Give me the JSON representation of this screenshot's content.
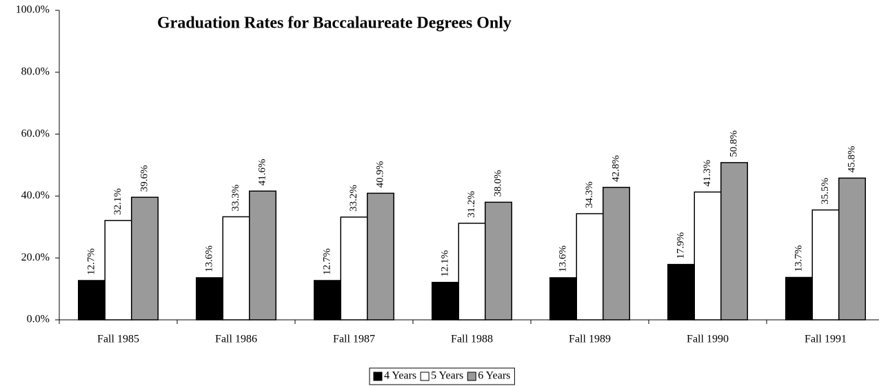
{
  "chart_data": {
    "type": "bar",
    "title": "Graduation Rates for Baccalaureate Degrees Only",
    "categories": [
      "Fall 1985",
      "Fall 1986",
      "Fall 1987",
      "Fall 1988",
      "Fall 1989",
      "Fall 1990",
      "Fall 1991"
    ],
    "series": [
      {
        "name": "4 Years",
        "color": "#000000",
        "values": [
          12.7,
          13.6,
          12.7,
          12.1,
          13.6,
          17.9,
          13.7
        ],
        "value_labels": [
          "12.7%",
          "13.6%",
          "12.7%",
          "12.1%",
          "13.6%",
          "17.9%",
          "13.7%"
        ]
      },
      {
        "name": "5 Years",
        "color": "#ffffff",
        "values": [
          32.1,
          33.3,
          33.2,
          31.2,
          34.3,
          41.3,
          35.5
        ],
        "value_labels": [
          "32.1%",
          "33.3%",
          "33.2%",
          "31.2%",
          "34.3%",
          "41.3%",
          "35.5%"
        ]
      },
      {
        "name": "6 Years",
        "color": "#9a9a9a",
        "values": [
          39.6,
          41.6,
          40.9,
          38.0,
          42.8,
          50.8,
          45.8
        ],
        "value_labels": [
          "39.6%",
          "41.6%",
          "40.9%",
          "38.0%",
          "42.8%",
          "50.8%",
          "45.8%"
        ]
      }
    ],
    "ylim": [
      0,
      100
    ],
    "yticks": [
      {
        "value": 0,
        "label": "0.0%"
      },
      {
        "value": 20,
        "label": "20.0%"
      },
      {
        "value": 40,
        "label": "40.0%"
      },
      {
        "value": 60,
        "label": "60.0%"
      },
      {
        "value": 80,
        "label": "80.0%"
      },
      {
        "value": 100,
        "label": "100.0%"
      }
    ],
    "legend": "bottom"
  }
}
